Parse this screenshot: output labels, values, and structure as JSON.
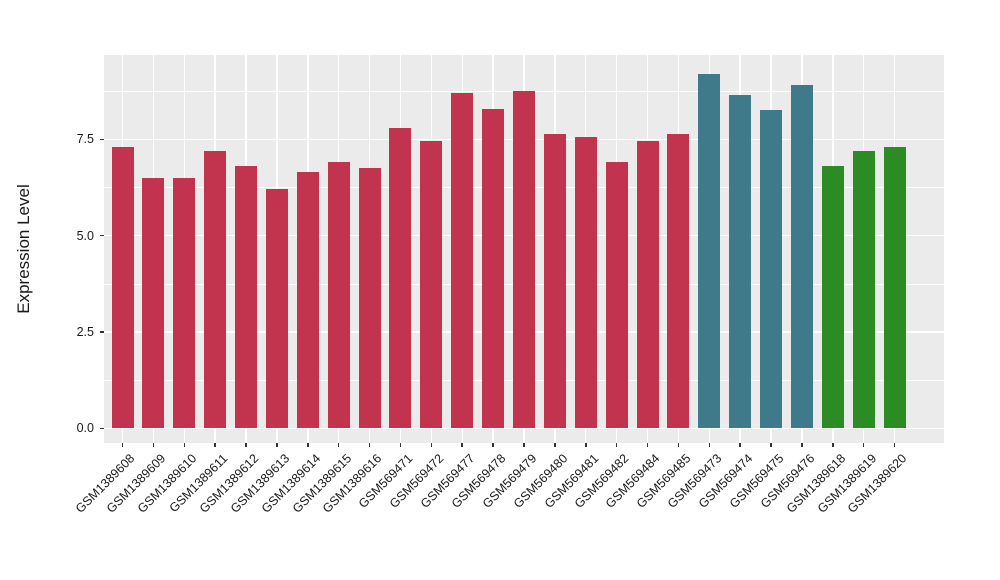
{
  "chart_data": {
    "type": "bar",
    "title": "",
    "xlabel": "",
    "ylabel": "Expression Level",
    "legend_position": "none",
    "grid": true,
    "panel_bg": "#EBEBEB",
    "grid_color": "#FFFFFF",
    "axis_text_color": "#1a1a1a",
    "tick_mark_color": "#333333",
    "palette": {
      "crimson": "#C2334D",
      "teal": "#3F7A8A",
      "green": "#2B8C23"
    },
    "y_axis": {
      "range": [
        -0.38,
        9.69
      ],
      "ticks": [
        {
          "value": 0.0,
          "label": "0.0"
        },
        {
          "value": 2.5,
          "label": "2.5"
        },
        {
          "value": 5.0,
          "label": "5.0"
        },
        {
          "value": 7.5,
          "label": "7.5"
        }
      ],
      "minor": [
        1.25,
        3.75,
        6.25,
        8.75
      ]
    },
    "bars": [
      {
        "label": "GSM1389608",
        "value": 7.3,
        "color": "crimson"
      },
      {
        "label": "GSM1389609",
        "value": 6.5,
        "color": "crimson"
      },
      {
        "label": "GSM1389610",
        "value": 6.5,
        "color": "crimson"
      },
      {
        "label": "GSM1389611",
        "value": 7.2,
        "color": "crimson"
      },
      {
        "label": "GSM1389612",
        "value": 6.8,
        "color": "crimson"
      },
      {
        "label": "GSM1389613",
        "value": 6.2,
        "color": "crimson"
      },
      {
        "label": "GSM1389614",
        "value": 6.65,
        "color": "crimson"
      },
      {
        "label": "GSM1389615",
        "value": 6.9,
        "color": "crimson"
      },
      {
        "label": "GSM1389616",
        "value": 6.75,
        "color": "crimson"
      },
      {
        "label": "GSM569471",
        "value": 7.8,
        "color": "crimson"
      },
      {
        "label": "GSM569472",
        "value": 7.45,
        "color": "crimson"
      },
      {
        "label": "GSM569477",
        "value": 8.7,
        "color": "crimson"
      },
      {
        "label": "GSM569478",
        "value": 8.3,
        "color": "crimson"
      },
      {
        "label": "GSM569479",
        "value": 8.75,
        "color": "crimson"
      },
      {
        "label": "GSM569480",
        "value": 7.65,
        "color": "crimson"
      },
      {
        "label": "GSM569481",
        "value": 7.55,
        "color": "crimson"
      },
      {
        "label": "GSM569482",
        "value": 6.9,
        "color": "crimson"
      },
      {
        "label": "GSM569484",
        "value": 7.45,
        "color": "crimson"
      },
      {
        "label": "GSM569485",
        "value": 7.65,
        "color": "crimson"
      },
      {
        "label": "GSM569473",
        "value": 9.2,
        "color": "teal"
      },
      {
        "label": "GSM569474",
        "value": 8.65,
        "color": "teal"
      },
      {
        "label": "GSM569475",
        "value": 8.25,
        "color": "teal"
      },
      {
        "label": "GSM569476",
        "value": 8.9,
        "color": "teal"
      },
      {
        "label": "GSM1389618",
        "value": 6.8,
        "color": "green"
      },
      {
        "label": "GSM1389619",
        "value": 7.2,
        "color": "green"
      },
      {
        "label": "GSM1389620",
        "value": 7.3,
        "color": "green"
      }
    ]
  }
}
